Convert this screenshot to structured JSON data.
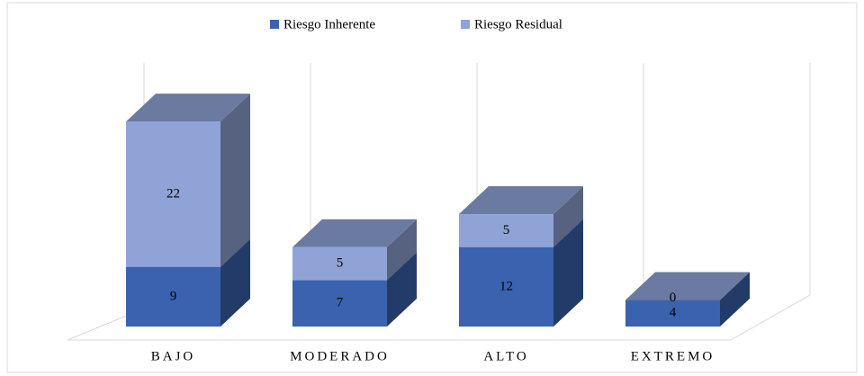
{
  "chart_data": {
    "type": "bar3d_stacked",
    "categories": [
      "BAJO",
      "MODERADO",
      "ALTO",
      "EXTREMO"
    ],
    "series": [
      {
        "name": "Riesgo Inherente",
        "color": "#3a62ae",
        "values": [
          9,
          7,
          12,
          4
        ]
      },
      {
        "name": "Riesgo Residual",
        "color": "#8fa3d6",
        "values": [
          22,
          5,
          5,
          0
        ]
      }
    ],
    "legend": "top"
  }
}
